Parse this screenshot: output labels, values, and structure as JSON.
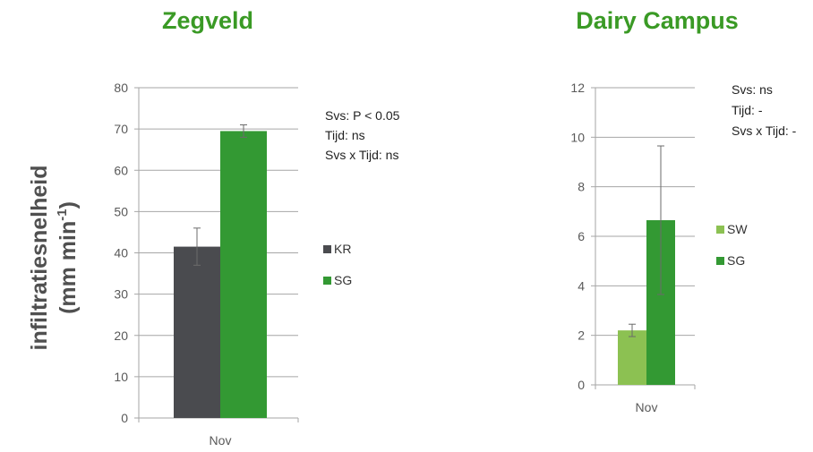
{
  "y_axis_label": {
    "line1": "infiltratiesnelheid",
    "line2": "(mm min",
    "sup": "-1",
    "close": ")"
  },
  "chart_data": [
    {
      "type": "bar",
      "title": "Zegveld",
      "categories": [
        "Nov"
      ],
      "ylim": [
        0,
        80
      ],
      "yticks": [
        0,
        10,
        20,
        30,
        40,
        50,
        60,
        70,
        80
      ],
      "grid": true,
      "legend_position": "right",
      "series": [
        {
          "name": "KR",
          "values": [
            41.5
          ],
          "error": [
            4.5
          ],
          "color": "#4a4b4f"
        },
        {
          "name": "SG",
          "values": [
            69.5
          ],
          "error": [
            1.5
          ],
          "color": "#339933"
        }
      ],
      "annotations": [
        "Svs: P  < 0.05",
        "Tijd: ns",
        "Svs x Tijd: ns"
      ],
      "title_color": "#3a9a25"
    },
    {
      "type": "bar",
      "title": "Dairy Campus",
      "categories": [
        "Nov"
      ],
      "ylim": [
        0,
        12
      ],
      "yticks": [
        0,
        2,
        4,
        6,
        8,
        10,
        12
      ],
      "grid": true,
      "legend_position": "right",
      "series": [
        {
          "name": "SW",
          "values": [
            2.2
          ],
          "error": [
            0.25
          ],
          "color": "#8cc152"
        },
        {
          "name": "SG",
          "values": [
            6.65
          ],
          "error": [
            3.0
          ],
          "color": "#339933"
        }
      ],
      "annotations": [
        "Svs: ns",
        "Tijd: -",
        "Svs x Tijd: -"
      ],
      "title_color": "#3a9a25"
    }
  ]
}
